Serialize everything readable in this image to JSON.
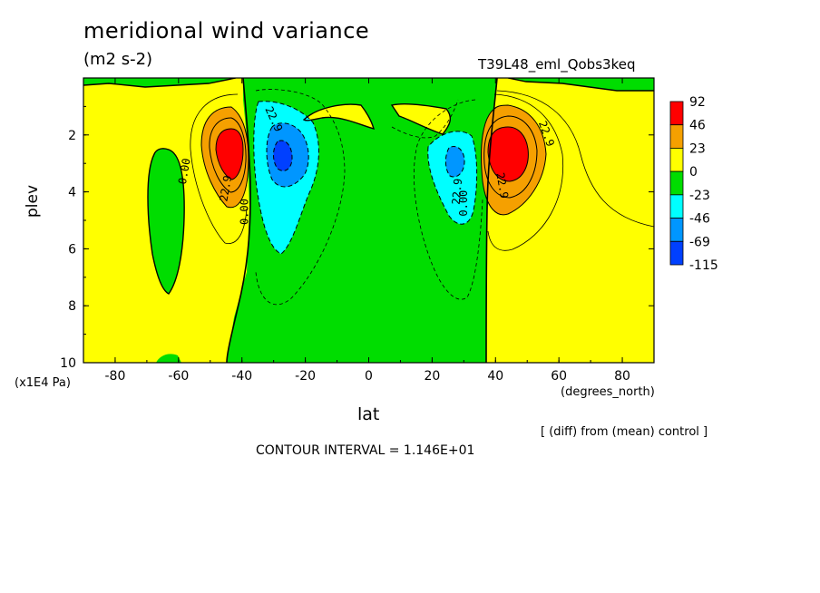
{
  "title": "meridional wind variance",
  "units": "(m2 s-2)",
  "run_id": "T39L48_eml_Qobs3keq",
  "diff_note": "[ (diff) from (mean) control ]",
  "contour_interval": "CONTOUR INTERVAL = 1.146E+01",
  "chart_data": {
    "type": "heatmap",
    "xlabel": "lat",
    "xunit": "(degrees_north)",
    "ylabel": "plev",
    "yunit": "(x1E4 Pa)",
    "xlim": [
      -90,
      90
    ],
    "ylim": [
      10,
      0
    ],
    "xticks": [
      -80,
      -60,
      -40,
      -20,
      0,
      20,
      40,
      60,
      80
    ],
    "yticks": [
      2,
      4,
      6,
      8,
      10
    ],
    "colorbar": {
      "labels": [
        "92",
        "46",
        "23",
        "0",
        "-23",
        "-46",
        "-69",
        "-115"
      ],
      "colors": [
        "#ff0000",
        "#f5a000",
        "#ffff00",
        "#00dd00",
        "#00ffff",
        "#0096ff",
        "#0040ff"
      ]
    },
    "contour_labels": [
      "22.9",
      "0.00",
      "22.9",
      "0.00",
      "22.9",
      "22.9",
      "0.00",
      "22.9"
    ],
    "features": [
      {
        "type": "max",
        "lat": -43,
        "plev": 2.5,
        "level": "92"
      },
      {
        "type": "max",
        "lat": 43,
        "plev": 2.5,
        "level": "92"
      },
      {
        "type": "min",
        "lat": -28,
        "plev": 2.8,
        "level": "-69"
      },
      {
        "type": "min",
        "lat": 24,
        "plev": 3.0,
        "level": "-69"
      }
    ]
  }
}
